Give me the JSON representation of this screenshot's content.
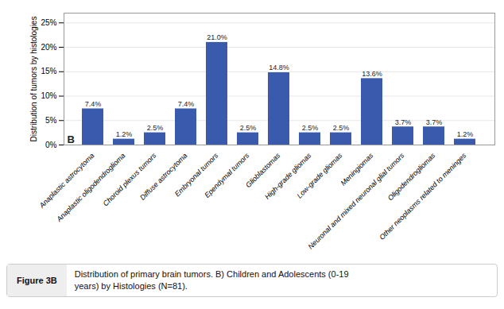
{
  "chart_data": {
    "type": "bar",
    "categories": [
      "Anaplastic astrocytoma",
      "Anaplastic oligodendroglioma",
      "Choroid plexus tumors",
      "Diffuse astrocytoma",
      "Embryonal tumors",
      "Ependymal tumors",
      "Glioblastomas",
      "High-grade gliomas",
      "Low-grade gliomas",
      "Meningiomas",
      "Neuronal and mixed neuronal glial tumors",
      "Oligodendrogliomas",
      "Other neoplasms related to meninges"
    ],
    "values": [
      7.4,
      1.2,
      2.5,
      7.4,
      21.0,
      2.5,
      14.8,
      2.5,
      2.5,
      13.6,
      3.7,
      3.7,
      1.2
    ],
    "value_labels": [
      "7.4%",
      "1.2%",
      "2.5%",
      "7.4%",
      "21.0%",
      "2.5%",
      "14.8%",
      "2.5%",
      "2.5%",
      "13.6%",
      "3.7%",
      "3.7%",
      "1.2%"
    ],
    "data_labels": true,
    "color": "#3a5aad",
    "ylabel": "Distribution of tumors by histologies",
    "ylim": [
      0,
      27
    ],
    "yticks": [
      {
        "value": 0,
        "label": "0%"
      },
      {
        "value": 5,
        "label": "5%"
      },
      {
        "value": 10,
        "label": "10%"
      },
      {
        "value": 15,
        "label": "15%"
      },
      {
        "value": 20,
        "label": "20%"
      },
      {
        "value": 25,
        "label": "25%"
      }
    ],
    "grid": true,
    "annotations": [
      "B"
    ],
    "caption_label": "Figure 3B",
    "caption": "Distribution of primary brain tumors. B) Children and Adolescents (0-19\nyears) by Histologies (N=81)."
  }
}
